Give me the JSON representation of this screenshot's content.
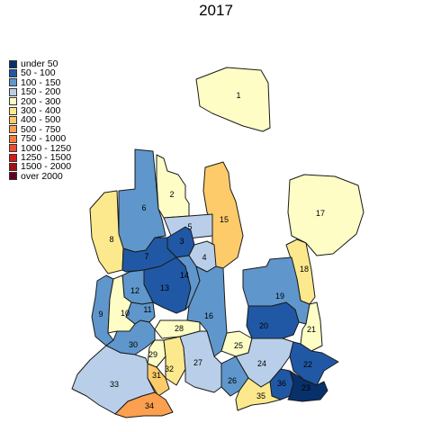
{
  "title": "2017",
  "legend": {
    "items": [
      {
        "label": "under 50",
        "color": "#08306b"
      },
      {
        "label": "50 - 100",
        "color": "#2158a5"
      },
      {
        "label": "100 - 150",
        "color": "#5f97cc"
      },
      {
        "label": "150 - 200",
        "color": "#b9cfe9"
      },
      {
        "label": "200 - 300",
        "color": "#fdfdc5"
      },
      {
        "label": "300 - 400",
        "color": "#fde98d"
      },
      {
        "label": "400 - 500",
        "color": "#fdcb6a"
      },
      {
        "label": "500 - 750",
        "color": "#fca04f"
      },
      {
        "label": "750 - 1000",
        "color": "#f97c3e"
      },
      {
        "label": "1000 - 1250",
        "color": "#f04a2f"
      },
      {
        "label": "1250 - 1500",
        "color": "#d7191c"
      },
      {
        "label": "1500 - 2000",
        "color": "#a50f15"
      },
      {
        "label": "over 2000",
        "color": "#67001f"
      }
    ]
  },
  "regions": [
    {
      "id": "1",
      "category": "200 - 300"
    },
    {
      "id": "2",
      "category": "200 - 300"
    },
    {
      "id": "3",
      "category": "50 - 100"
    },
    {
      "id": "4",
      "category": "150 - 200"
    },
    {
      "id": "5",
      "category": "150 - 200"
    },
    {
      "id": "6",
      "category": "100 - 150"
    },
    {
      "id": "7",
      "category": "50 - 100"
    },
    {
      "id": "8",
      "category": "300 - 400"
    },
    {
      "id": "9",
      "category": "100 - 150"
    },
    {
      "id": "10",
      "category": "200 - 300"
    },
    {
      "id": "11",
      "category": "100 - 150"
    },
    {
      "id": "12",
      "category": "100 - 150"
    },
    {
      "id": "13",
      "category": "50 - 100"
    },
    {
      "id": "14",
      "category": "100 - 150"
    },
    {
      "id": "15",
      "category": "400 - 500"
    },
    {
      "id": "16",
      "category": "100 - 150"
    },
    {
      "id": "17",
      "category": "200 - 300"
    },
    {
      "id": "18",
      "category": "300 - 400"
    },
    {
      "id": "19",
      "category": "100 - 150"
    },
    {
      "id": "20",
      "category": "50 - 100"
    },
    {
      "id": "21",
      "category": "200 - 300"
    },
    {
      "id": "22",
      "category": "50 - 100"
    },
    {
      "id": "23",
      "category": "under 50"
    },
    {
      "id": "24",
      "category": "150 - 200"
    },
    {
      "id": "25",
      "category": "200 - 300"
    },
    {
      "id": "26",
      "category": "100 - 150"
    },
    {
      "id": "27",
      "category": "150 - 200"
    },
    {
      "id": "28",
      "category": "200 - 300"
    },
    {
      "id": "29",
      "category": "200 - 300"
    },
    {
      "id": "30",
      "category": "100 - 150"
    },
    {
      "id": "31",
      "category": "400 - 500"
    },
    {
      "id": "32",
      "category": "300 - 400"
    },
    {
      "id": "33",
      "category": "150 - 200"
    },
    {
      "id": "34",
      "category": "500 - 750"
    },
    {
      "id": "35",
      "category": "300 - 400"
    },
    {
      "id": "36",
      "category": "50 - 100"
    }
  ]
}
